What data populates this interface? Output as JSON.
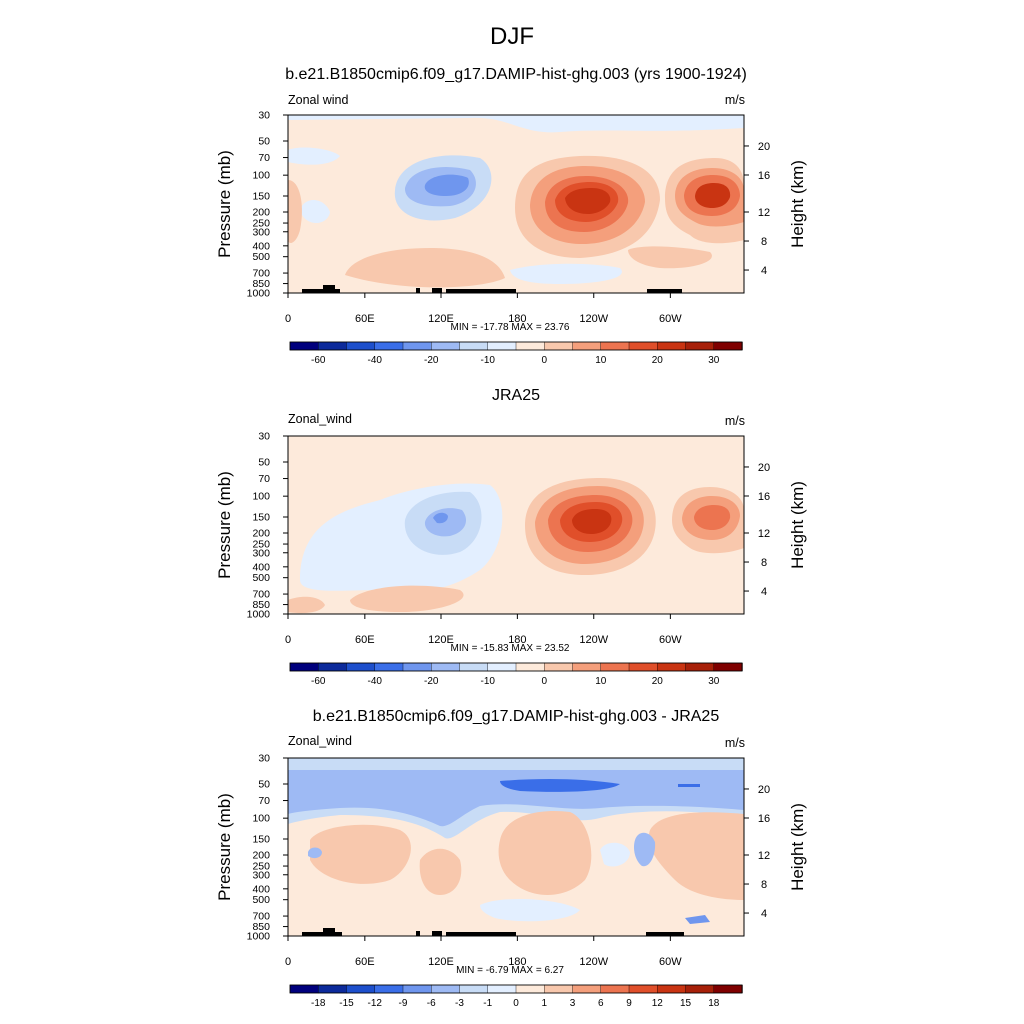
{
  "figure_title": "DJF",
  "panels": [
    {
      "title": "b.e21.B1850cmip6.f09_g17.DAMIP-hist-ghg.003 (yrs 1900-1924)",
      "left_label": "Zonal wind",
      "right_label": "m/s",
      "stats": "MIN = -17.78  MAX =  23.76"
    },
    {
      "title": "JRA25",
      "left_label": "Zonal_wind",
      "right_label": "m/s",
      "stats": "MIN = -15.83  MAX =  23.52"
    },
    {
      "title": "b.e21.B1850cmip6.f09_g17.DAMIP-hist-ghg.003 - JRA25",
      "left_label": "Zonal_wind",
      "right_label": "m/s",
      "stats": "MIN =  -6.79  MAX =  6.27"
    }
  ],
  "chart_data": [
    {
      "type": "heatmap",
      "title": "b.e21.B1850cmip6.f09_g17.DAMIP-hist-ghg.003 (yrs 1900-1924)",
      "variable": "Zonal wind",
      "units": "m/s",
      "xlabel": "",
      "ylabel": "Pressure (mb)",
      "y2label": "Height (km)",
      "x_ticks": [
        "0",
        "60E",
        "120E",
        "180",
        "120W",
        "60W"
      ],
      "y_ticks": [
        "30",
        "50",
        "70",
        "100",
        "150",
        "200",
        "250",
        "300",
        "400",
        "500",
        "700",
        "850",
        "1000"
      ],
      "y2_ticks": [
        "20",
        "16",
        "12",
        "8",
        "4"
      ],
      "colorbar_labels": [
        "-60",
        "-40",
        "-20",
        "-10",
        "0",
        "10",
        "20",
        "30"
      ],
      "min": -17.78,
      "max": 23.76,
      "features": [
        {
          "lon": 150,
          "p": 150,
          "value": -15
        },
        {
          "lon": 265,
          "p": 170,
          "value": 23.76
        },
        {
          "lon": 335,
          "p": 150,
          "value": 20
        },
        {
          "lon": 5,
          "p": 150,
          "value": 8
        }
      ]
    },
    {
      "type": "heatmap",
      "title": "JRA25",
      "variable": "Zonal_wind",
      "units": "m/s",
      "xlabel": "",
      "ylabel": "Pressure (mb)",
      "y2label": "Height (km)",
      "x_ticks": [
        "0",
        "60E",
        "120E",
        "180",
        "120W",
        "60W"
      ],
      "y_ticks": [
        "30",
        "50",
        "70",
        "100",
        "150",
        "200",
        "250",
        "300",
        "400",
        "500",
        "700",
        "850",
        "1000"
      ],
      "y2_ticks": [
        "20",
        "16",
        "12",
        "8",
        "4"
      ],
      "colorbar_labels": [
        "-60",
        "-40",
        "-20",
        "-10",
        "0",
        "10",
        "20",
        "30"
      ],
      "min": -15.83,
      "max": 23.52,
      "features": [
        {
          "lon": 140,
          "p": 170,
          "value": -12
        },
        {
          "lon": 270,
          "p": 175,
          "value": 23.52
        },
        {
          "lon": 335,
          "p": 160,
          "value": 18
        }
      ]
    },
    {
      "type": "heatmap",
      "title": "b.e21.B1850cmip6.f09_g17.DAMIP-hist-ghg.003 - JRA25",
      "variable": "Zonal_wind",
      "units": "m/s",
      "xlabel": "",
      "ylabel": "Pressure (mb)",
      "y2label": "Height (km)",
      "x_ticks": [
        "0",
        "60E",
        "120E",
        "180",
        "120W",
        "60W"
      ],
      "y_ticks": [
        "30",
        "50",
        "70",
        "100",
        "150",
        "200",
        "250",
        "300",
        "400",
        "500",
        "700",
        "850",
        "1000"
      ],
      "y2_ticks": [
        "20",
        "16",
        "12",
        "8",
        "4"
      ],
      "colorbar_labels": [
        "-18",
        "-15",
        "-12",
        "-9",
        "-6",
        "-3",
        "-1",
        "0",
        "1",
        "3",
        "6",
        "9",
        "12",
        "15",
        "18"
      ],
      "min": -6.79,
      "max": 6.27,
      "features": [
        {
          "lon": 180,
          "p": 55,
          "value": -6.79
        },
        {
          "lon": 175,
          "p": 200,
          "value": 5
        },
        {
          "lon": 320,
          "p": 250,
          "value": 6.27
        }
      ]
    }
  ],
  "colors": {
    "full_scale": [
      "#00007d",
      "#0c2a9b",
      "#1d4fcc",
      "#3a6ee8",
      "#6f96ee",
      "#9ebaf4",
      "#c8dcf6",
      "#e3efff",
      "#fdeadb",
      "#f8c8ad",
      "#f49f7c",
      "#ec7450",
      "#e04f2a",
      "#c93412",
      "#a72009",
      "#7f0000"
    ],
    "diff_scale": [
      "#00007d",
      "#0c2a9b",
      "#1d4fcc",
      "#3a6ee8",
      "#6f96ee",
      "#9ebaf4",
      "#c8dcf6",
      "#e3efff",
      "#fdeadb",
      "#f8c8ad",
      "#f49f7c",
      "#ec7450",
      "#e04f2a",
      "#c93412",
      "#a72009",
      "#7f0000"
    ],
    "land": "#000000"
  }
}
